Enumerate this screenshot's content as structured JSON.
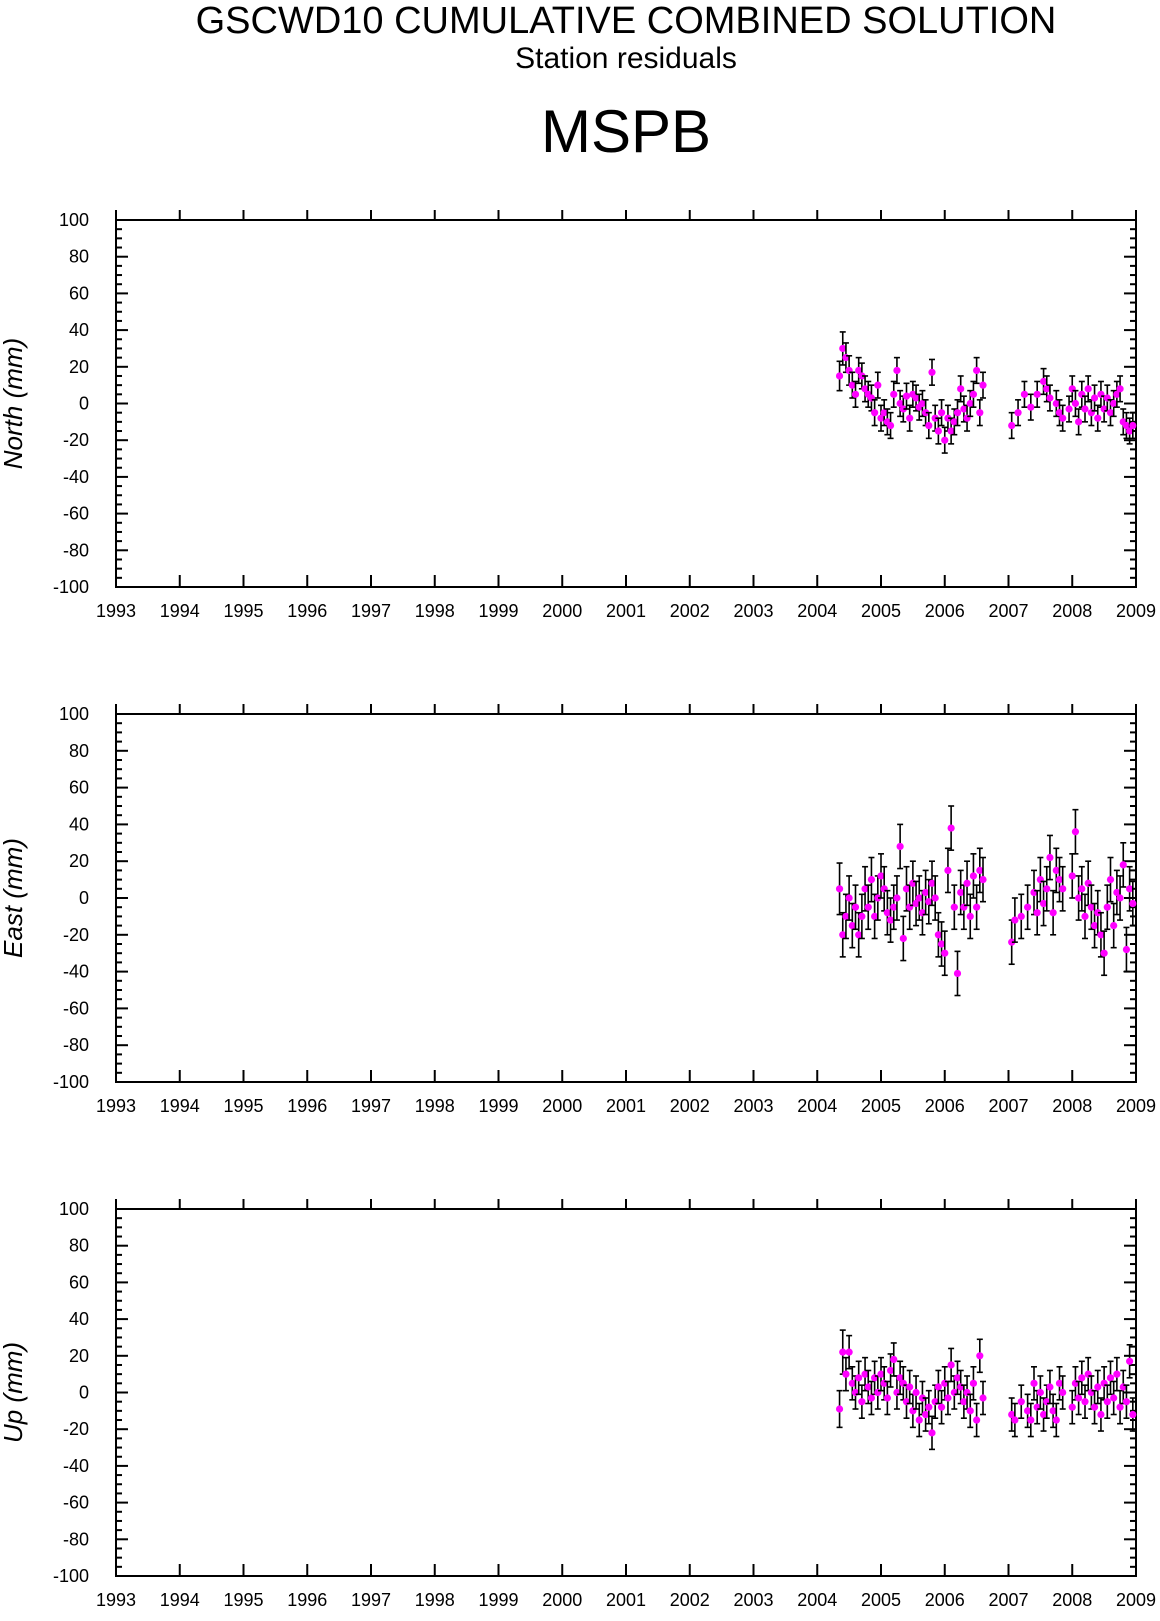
{
  "title": "GSCWD10 CUMULATIVE COMBINED SOLUTION",
  "subtitle": "Station residuals",
  "station": "MSPB",
  "colors": {
    "point": "#ff00ff",
    "errorbar": "#000000",
    "axis": "#000000"
  },
  "chart_data": [
    {
      "type": "scatter",
      "component": "north",
      "ylabel": "North (mm)",
      "ylim": [
        -100,
        100
      ],
      "yticks": [
        "100",
        "80",
        "60",
        "40",
        "20",
        "0",
        "-20",
        "-40",
        "-60",
        "-80",
        "-100"
      ],
      "xlim": [
        1993,
        2009
      ],
      "xticks": [
        "1993",
        "1994",
        "1995",
        "1996",
        "1997",
        "1998",
        "1999",
        "2000",
        "2001",
        "2002",
        "2003",
        "2004",
        "2005",
        "2006",
        "2007",
        "2008",
        "2009"
      ],
      "grid": false,
      "error_bars": true,
      "points": [
        [
          2004.35,
          15
        ],
        [
          2004.4,
          30
        ],
        [
          2004.45,
          25
        ],
        [
          2004.5,
          18
        ],
        [
          2004.55,
          10
        ],
        [
          2004.6,
          5
        ],
        [
          2004.65,
          18
        ],
        [
          2004.7,
          15
        ],
        [
          2004.75,
          8
        ],
        [
          2004.8,
          5
        ],
        [
          2004.85,
          3
        ],
        [
          2004.9,
          -5
        ],
        [
          2004.95,
          10
        ],
        [
          2005.0,
          -8
        ],
        [
          2005.05,
          -5
        ],
        [
          2005.1,
          -10
        ],
        [
          2005.15,
          -12
        ],
        [
          2005.2,
          5
        ],
        [
          2005.25,
          18
        ],
        [
          2005.3,
          0
        ],
        [
          2005.35,
          -3
        ],
        [
          2005.4,
          4
        ],
        [
          2005.45,
          -8
        ],
        [
          2005.5,
          5
        ],
        [
          2005.55,
          3
        ],
        [
          2005.6,
          -2
        ],
        [
          2005.65,
          0
        ],
        [
          2005.7,
          -5
        ],
        [
          2005.75,
          -12
        ],
        [
          2005.8,
          17
        ],
        [
          2005.85,
          -8
        ],
        [
          2005.9,
          -15
        ],
        [
          2005.95,
          -5
        ],
        [
          2006.0,
          -20
        ],
        [
          2006.05,
          -8
        ],
        [
          2006.1,
          -15
        ],
        [
          2006.15,
          -10
        ],
        [
          2006.2,
          -5
        ],
        [
          2006.25,
          8
        ],
        [
          2006.3,
          -3
        ],
        [
          2006.35,
          -8
        ],
        [
          2006.4,
          0
        ],
        [
          2006.45,
          5
        ],
        [
          2006.5,
          18
        ],
        [
          2006.55,
          -5
        ],
        [
          2006.6,
          10
        ],
        [
          2007.05,
          -12
        ],
        [
          2007.15,
          -5
        ],
        [
          2007.25,
          5
        ],
        [
          2007.35,
          -2
        ],
        [
          2007.45,
          5
        ],
        [
          2007.55,
          12
        ],
        [
          2007.6,
          8
        ],
        [
          2007.65,
          3
        ],
        [
          2007.75,
          0
        ],
        [
          2007.8,
          -5
        ],
        [
          2007.85,
          -8
        ],
        [
          2007.95,
          -3
        ],
        [
          2008.0,
          8
        ],
        [
          2008.05,
          0
        ],
        [
          2008.1,
          -10
        ],
        [
          2008.15,
          5
        ],
        [
          2008.2,
          -3
        ],
        [
          2008.25,
          8
        ],
        [
          2008.3,
          -5
        ],
        [
          2008.35,
          3
        ],
        [
          2008.4,
          -8
        ],
        [
          2008.45,
          5
        ],
        [
          2008.5,
          -3
        ],
        [
          2008.55,
          3
        ],
        [
          2008.6,
          -5
        ],
        [
          2008.65,
          0
        ],
        [
          2008.7,
          5
        ],
        [
          2008.75,
          8
        ],
        [
          2008.8,
          -10
        ],
        [
          2008.85,
          -12
        ],
        [
          2008.9,
          -15
        ],
        [
          2008.95,
          -12
        ]
      ],
      "errors": [
        8,
        9,
        8,
        8,
        7,
        7,
        7,
        7,
        7,
        7,
        7,
        7,
        7,
        7,
        7,
        7,
        7,
        7,
        7,
        7,
        7,
        7,
        7,
        7,
        7,
        7,
        7,
        7,
        7,
        7,
        7,
        7,
        7,
        7,
        7,
        7,
        7,
        7,
        7,
        7,
        7,
        7,
        7,
        7,
        7,
        7,
        7,
        7,
        7,
        7,
        7,
        7,
        7,
        7,
        7,
        7,
        7,
        7,
        7,
        7,
        7,
        7,
        7,
        7,
        7,
        7,
        7,
        7,
        7,
        7,
        7,
        7,
        7,
        7,
        7,
        7,
        7,
        7
      ]
    },
    {
      "type": "scatter",
      "component": "east",
      "ylabel": "East (mm)",
      "ylim": [
        -100,
        100
      ],
      "yticks": [
        "100",
        "80",
        "60",
        "40",
        "20",
        "0",
        "-20",
        "-40",
        "-60",
        "-80",
        "-100"
      ],
      "xlim": [
        1993,
        2009
      ],
      "xticks": [
        "1993",
        "1994",
        "1995",
        "1996",
        "1997",
        "1998",
        "1999",
        "2000",
        "2001",
        "2002",
        "2003",
        "2004",
        "2005",
        "2006",
        "2007",
        "2008",
        "2009"
      ],
      "grid": false,
      "error_bars": true,
      "points": [
        [
          2004.35,
          5
        ],
        [
          2004.4,
          -20
        ],
        [
          2004.45,
          -10
        ],
        [
          2004.5,
          0
        ],
        [
          2004.55,
          -15
        ],
        [
          2004.6,
          -5
        ],
        [
          2004.65,
          -20
        ],
        [
          2004.7,
          -10
        ],
        [
          2004.75,
          5
        ],
        [
          2004.8,
          -5
        ],
        [
          2004.85,
          10
        ],
        [
          2004.9,
          -10
        ],
        [
          2004.95,
          0
        ],
        [
          2005.0,
          12
        ],
        [
          2005.05,
          5
        ],
        [
          2005.1,
          -8
        ],
        [
          2005.15,
          -12
        ],
        [
          2005.2,
          -5
        ],
        [
          2005.25,
          0
        ],
        [
          2005.3,
          28
        ],
        [
          2005.35,
          -22
        ],
        [
          2005.4,
          5
        ],
        [
          2005.45,
          -5
        ],
        [
          2005.5,
          8
        ],
        [
          2005.55,
          -3
        ],
        [
          2005.6,
          0
        ],
        [
          2005.65,
          -8
        ],
        [
          2005.7,
          3
        ],
        [
          2005.75,
          -2
        ],
        [
          2005.8,
          8
        ],
        [
          2005.85,
          0
        ],
        [
          2005.9,
          -20
        ],
        [
          2005.95,
          -25
        ],
        [
          2006.0,
          -30
        ],
        [
          2006.05,
          15
        ],
        [
          2006.1,
          38
        ],
        [
          2006.15,
          -5
        ],
        [
          2006.2,
          -41
        ],
        [
          2006.25,
          3
        ],
        [
          2006.3,
          -5
        ],
        [
          2006.35,
          8
        ],
        [
          2006.4,
          -10
        ],
        [
          2006.45,
          12
        ],
        [
          2006.5,
          -5
        ],
        [
          2006.55,
          15
        ],
        [
          2006.6,
          10
        ],
        [
          2007.05,
          -24
        ],
        [
          2007.1,
          -12
        ],
        [
          2007.2,
          -10
        ],
        [
          2007.3,
          -5
        ],
        [
          2007.4,
          3
        ],
        [
          2007.45,
          -8
        ],
        [
          2007.5,
          10
        ],
        [
          2007.55,
          -3
        ],
        [
          2007.6,
          5
        ],
        [
          2007.65,
          22
        ],
        [
          2007.7,
          -8
        ],
        [
          2007.75,
          15
        ],
        [
          2007.8,
          10
        ],
        [
          2007.85,
          5
        ],
        [
          2008.0,
          12
        ],
        [
          2008.05,
          36
        ],
        [
          2008.1,
          0
        ],
        [
          2008.15,
          5
        ],
        [
          2008.2,
          -10
        ],
        [
          2008.25,
          8
        ],
        [
          2008.3,
          -5
        ],
        [
          2008.35,
          -15
        ],
        [
          2008.4,
          -8
        ],
        [
          2008.45,
          -20
        ],
        [
          2008.5,
          -30
        ],
        [
          2008.55,
          -5
        ],
        [
          2008.6,
          10
        ],
        [
          2008.65,
          -15
        ],
        [
          2008.7,
          3
        ],
        [
          2008.75,
          0
        ],
        [
          2008.8,
          18
        ],
        [
          2008.85,
          -28
        ],
        [
          2008.9,
          5
        ],
        [
          2008.95,
          -3
        ]
      ],
      "errors": [
        14,
        12,
        12,
        12,
        12,
        12,
        12,
        12,
        12,
        12,
        12,
        12,
        12,
        12,
        12,
        12,
        12,
        12,
        12,
        12,
        12,
        12,
        12,
        12,
        12,
        12,
        12,
        12,
        12,
        12,
        12,
        12,
        12,
        12,
        12,
        12,
        12,
        12,
        12,
        12,
        12,
        12,
        12,
        12,
        12,
        12,
        12,
        12,
        12,
        12,
        12,
        12,
        12,
        12,
        12,
        12,
        12,
        12,
        12,
        12,
        12,
        12,
        12,
        12,
        12,
        12,
        12,
        12,
        12,
        12,
        12,
        12,
        12,
        12,
        12,
        12,
        12,
        12,
        12,
        12
      ]
    },
    {
      "type": "scatter",
      "component": "up",
      "ylabel": "Up (mm)",
      "ylim": [
        -100,
        100
      ],
      "yticks": [
        "100",
        "80",
        "60",
        "40",
        "20",
        "0",
        "-20",
        "-40",
        "-60",
        "-80",
        "-100"
      ],
      "xlim": [
        1993,
        2009
      ],
      "xticks": [
        "1993",
        "1994",
        "1995",
        "1996",
        "1997",
        "1998",
        "1999",
        "2000",
        "2001",
        "2002",
        "2003",
        "2004",
        "2005",
        "2006",
        "2007",
        "2008",
        "2009"
      ],
      "grid": false,
      "error_bars": true,
      "points": [
        [
          2004.35,
          -9
        ],
        [
          2004.4,
          22
        ],
        [
          2004.45,
          10
        ],
        [
          2004.5,
          22
        ],
        [
          2004.55,
          5
        ],
        [
          2004.6,
          0
        ],
        [
          2004.65,
          8
        ],
        [
          2004.7,
          -5
        ],
        [
          2004.75,
          10
        ],
        [
          2004.8,
          3
        ],
        [
          2004.85,
          -3
        ],
        [
          2004.9,
          8
        ],
        [
          2004.95,
          0
        ],
        [
          2005.0,
          10
        ],
        [
          2005.05,
          5
        ],
        [
          2005.1,
          -3
        ],
        [
          2005.15,
          12
        ],
        [
          2005.2,
          18
        ],
        [
          2005.25,
          0
        ],
        [
          2005.3,
          8
        ],
        [
          2005.35,
          5
        ],
        [
          2005.4,
          -5
        ],
        [
          2005.45,
          3
        ],
        [
          2005.5,
          -10
        ],
        [
          2005.55,
          0
        ],
        [
          2005.6,
          -15
        ],
        [
          2005.65,
          -3
        ],
        [
          2005.7,
          -12
        ],
        [
          2005.75,
          -8
        ],
        [
          2005.8,
          -22
        ],
        [
          2005.85,
          -5
        ],
        [
          2005.9,
          3
        ],
        [
          2005.95,
          -8
        ],
        [
          2006.0,
          5
        ],
        [
          2006.05,
          -3
        ],
        [
          2006.1,
          15
        ],
        [
          2006.15,
          0
        ],
        [
          2006.2,
          8
        ],
        [
          2006.25,
          3
        ],
        [
          2006.3,
          -5
        ],
        [
          2006.35,
          0
        ],
        [
          2006.4,
          -10
        ],
        [
          2006.45,
          5
        ],
        [
          2006.5,
          -15
        ],
        [
          2006.55,
          20
        ],
        [
          2006.6,
          -3
        ],
        [
          2007.05,
          -12
        ],
        [
          2007.1,
          -15
        ],
        [
          2007.2,
          -5
        ],
        [
          2007.3,
          -10
        ],
        [
          2007.35,
          -15
        ],
        [
          2007.4,
          5
        ],
        [
          2007.45,
          -8
        ],
        [
          2007.5,
          0
        ],
        [
          2007.55,
          -12
        ],
        [
          2007.6,
          -5
        ],
        [
          2007.65,
          3
        ],
        [
          2007.7,
          -10
        ],
        [
          2007.75,
          -15
        ],
        [
          2007.8,
          5
        ],
        [
          2007.85,
          0
        ],
        [
          2008.0,
          -8
        ],
        [
          2008.05,
          5
        ],
        [
          2008.1,
          -3
        ],
        [
          2008.15,
          8
        ],
        [
          2008.2,
          -5
        ],
        [
          2008.25,
          10
        ],
        [
          2008.3,
          0
        ],
        [
          2008.35,
          -8
        ],
        [
          2008.4,
          3
        ],
        [
          2008.45,
          -12
        ],
        [
          2008.5,
          5
        ],
        [
          2008.55,
          -5
        ],
        [
          2008.6,
          8
        ],
        [
          2008.65,
          -3
        ],
        [
          2008.7,
          10
        ],
        [
          2008.75,
          -8
        ],
        [
          2008.8,
          3
        ],
        [
          2008.85,
          -5
        ],
        [
          2008.9,
          17
        ],
        [
          2008.95,
          -12
        ]
      ],
      "errors": [
        10,
        12,
        9,
        9,
        9,
        9,
        9,
        9,
        9,
        9,
        9,
        9,
        9,
        9,
        9,
        9,
        9,
        9,
        9,
        9,
        9,
        9,
        9,
        9,
        9,
        9,
        9,
        9,
        9,
        9,
        9,
        9,
        9,
        9,
        9,
        9,
        9,
        9,
        9,
        9,
        9,
        9,
        9,
        9,
        9,
        9,
        9,
        9,
        9,
        9,
        9,
        9,
        9,
        9,
        9,
        9,
        9,
        9,
        9,
        9,
        9,
        9,
        9,
        9,
        9,
        9,
        9,
        9,
        9,
        9,
        9,
        9,
        9,
        9,
        9,
        9,
        9,
        9,
        9,
        9,
        9
      ]
    }
  ]
}
